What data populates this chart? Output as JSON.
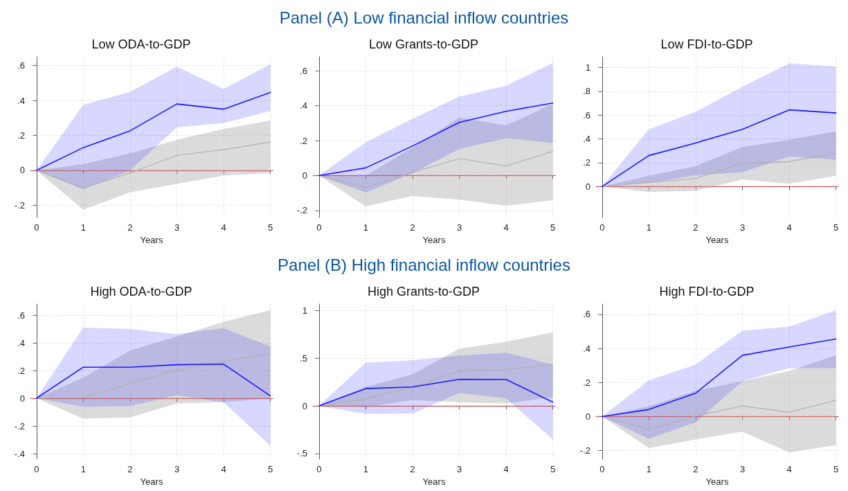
{
  "chart_data": [
    {
      "type": "line",
      "title": "Low ODA-to-GDP",
      "annotations": [
        "Panel (A) Low financial inflow countries"
      ],
      "xlabel": "Years",
      "x": [
        0,
        1,
        2,
        3,
        4,
        5
      ],
      "xlim": [
        -0.13,
        5.05
      ],
      "xticks": [
        0,
        1,
        2,
        3,
        4,
        5
      ],
      "ylim": [
        -0.27,
        0.65
      ],
      "yticks": [
        {
          "value": -0.2,
          "label": "-.2"
        },
        {
          "value": 0,
          "label": "0"
        },
        {
          "value": 0.2,
          "label": ".2"
        },
        {
          "value": 0.4,
          "label": ".4"
        },
        {
          "value": 0.6,
          "label": ".6"
        }
      ],
      "grid": true,
      "line_style": "solid",
      "marker": "none",
      "series": [
        {
          "color": "#b0b0b0",
          "values": [
            0,
            -0.1,
            -0.016,
            0.086,
            0.118,
            0.162
          ],
          "lower": [
            0,
            -0.225,
            -0.126,
            -0.078,
            -0.03,
            -0.016
          ],
          "upper": [
            0,
            0.035,
            0.097,
            0.175,
            0.237,
            0.285
          ]
        },
        {
          "color": "#1a1aff",
          "values": [
            0,
            0.13,
            0.226,
            0.38,
            0.35,
            0.446
          ],
          "lower": [
            0,
            -0.11,
            0,
            0.247,
            0.27,
            0.34
          ],
          "upper": [
            0,
            0.375,
            0.449,
            0.593,
            0.466,
            0.607
          ]
        }
      ],
      "ref_lines": [
        {
          "axis": "y",
          "value": 0,
          "label": null,
          "color": "#f06060",
          "line_style": "dashed"
        }
      ]
    },
    {
      "type": "line",
      "title": "Low Grants-to-GDP",
      "xlabel": "Years",
      "x": [
        0,
        1,
        2,
        3,
        4,
        5
      ],
      "xlim": [
        -0.13,
        5.05
      ],
      "xticks": [
        0,
        1,
        2,
        3,
        4,
        5
      ],
      "ylim": [
        -0.24,
        0.68
      ],
      "yticks": [
        {
          "value": -0.2,
          "label": "-.2"
        },
        {
          "value": 0,
          "label": "0"
        },
        {
          "value": 0.2,
          "label": ".2"
        },
        {
          "value": 0.4,
          "label": ".4"
        },
        {
          "value": 0.6,
          "label": ".6"
        }
      ],
      "grid": true,
      "line_style": "solid",
      "marker": "none",
      "series": [
        {
          "color": "#b0b0b0",
          "values": [
            0,
            -0.068,
            0.017,
            0.097,
            0.055,
            0.138
          ],
          "lower": [
            0,
            -0.177,
            -0.117,
            -0.138,
            -0.173,
            -0.141
          ],
          "upper": [
            0,
            0,
            0.16,
            0.332,
            0.287,
            0.41
          ]
        },
        {
          "color": "#1a1aff",
          "values": [
            0,
            0.044,
            0.169,
            0.304,
            0.368,
            0.415
          ],
          "lower": [
            0,
            -0.097,
            0.014,
            0.152,
            0.214,
            0.187
          ],
          "upper": [
            0,
            0.19,
            0.325,
            0.452,
            0.514,
            0.645
          ]
        }
      ],
      "ref_lines": [
        {
          "axis": "y",
          "value": 0,
          "label": null,
          "color": "#f06060",
          "line_style": "dashed"
        }
      ]
    },
    {
      "type": "line",
      "title": "Low FDI-to-GDP",
      "xlabel": "Years",
      "x": [
        0,
        1,
        2,
        3,
        4,
        5
      ],
      "xlim": [
        -0.13,
        5.05
      ],
      "xticks": [
        0,
        1,
        2,
        3,
        4,
        5
      ],
      "ylim": [
        -0.26,
        1.09
      ],
      "yticks": [
        {
          "value": 0,
          "label": "0"
        },
        {
          "value": 0.2,
          "label": ".2"
        },
        {
          "value": 0.4,
          "label": ".4"
        },
        {
          "value": 0.6,
          "label": ".6"
        },
        {
          "value": 0.8,
          "label": ".8"
        },
        {
          "value": 1,
          "label": "1"
        }
      ],
      "grid": true,
      "line_style": "solid",
      "marker": "none",
      "series": [
        {
          "color": "#b0b0b0",
          "values": [
            0,
            0.034,
            0.068,
            0.195,
            0.209,
            0.28
          ],
          "lower": [
            0,
            -0.046,
            -0.036,
            0.058,
            0.024,
            0.09
          ],
          "upper": [
            0,
            0.09,
            0.171,
            0.332,
            0.392,
            0.465
          ]
        },
        {
          "color": "#1a1aff",
          "values": [
            0,
            0.26,
            0.366,
            0.481,
            0.644,
            0.618
          ],
          "lower": [
            0,
            0.03,
            0.095,
            0.119,
            0.252,
            0.225
          ],
          "upper": [
            0,
            0.481,
            0.628,
            0.839,
            1.034,
            1.008
          ]
        }
      ],
      "ref_lines": [
        {
          "axis": "y",
          "value": 0,
          "label": null,
          "color": "#f06060",
          "line_style": "dashed"
        }
      ]
    },
    {
      "type": "line",
      "title": "High ODA-to-GDP",
      "annotations": [
        "Panel (B) High financial inflow countries"
      ],
      "xlabel": "Years",
      "x": [
        0,
        1,
        2,
        3,
        4,
        5
      ],
      "xlim": [
        -0.13,
        5.05
      ],
      "xticks": [
        0,
        1,
        2,
        3,
        4,
        5
      ],
      "ylim": [
        -0.44,
        0.68
      ],
      "yticks": [
        {
          "value": -0.4,
          "label": "-.4"
        },
        {
          "value": -0.2,
          "label": "-.2"
        },
        {
          "value": 0,
          "label": "0"
        },
        {
          "value": 0.2,
          "label": ".2"
        },
        {
          "value": 0.4,
          "label": ".4"
        },
        {
          "value": 0.6,
          "label": ".6"
        }
      ],
      "grid": true,
      "line_style": "solid",
      "marker": "none",
      "series": [
        {
          "color": "#b0b0b0",
          "values": [
            0,
            0.005,
            0.107,
            0.203,
            0.264,
            0.324
          ],
          "lower": [
            0,
            -0.147,
            -0.139,
            -0.037,
            -0.029,
            0
          ],
          "upper": [
            0,
            0.149,
            0.344,
            0.446,
            0.551,
            0.636
          ]
        },
        {
          "color": "#1a1aff",
          "values": [
            0,
            0.224,
            0.224,
            0.242,
            0.246,
            0.017
          ],
          "lower": [
            0,
            -0.063,
            -0.056,
            0.022,
            -0.03,
            -0.342
          ],
          "upper": [
            0,
            0.51,
            0.5,
            0.463,
            0.505,
            0.373
          ]
        }
      ],
      "ref_lines": [
        {
          "axis": "y",
          "value": 0,
          "label": null,
          "color": "#f06060",
          "line_style": "dashed"
        }
      ]
    },
    {
      "type": "line",
      "title": "High Grants-to-GDP",
      "xlabel": "Years",
      "x": [
        0,
        1,
        2,
        3,
        4,
        5
      ],
      "xlim": [
        -0.13,
        5.05
      ],
      "xticks": [
        0,
        1,
        2,
        3,
        4,
        5
      ],
      "ylim": [
        -0.56,
        1.07
      ],
      "yticks": [
        {
          "value": -0.5,
          "label": "-.5"
        },
        {
          "value": 0,
          "label": "0"
        },
        {
          "value": 0.5,
          "label": ".5"
        },
        {
          "value": 1,
          "label": "1"
        }
      ],
      "grid": true,
      "line_style": "solid",
      "marker": "none",
      "series": [
        {
          "color": "#b0b0b0",
          "values": [
            0,
            0.074,
            0.196,
            0.368,
            0.38,
            0.434
          ],
          "lower": [
            0,
            -0.012,
            0.06,
            0.037,
            0.025,
            0.09
          ],
          "upper": [
            0,
            0.2,
            0.331,
            0.6,
            0.674,
            0.772
          ]
        },
        {
          "color": "#1a1aff",
          "values": [
            0,
            0.181,
            0.199,
            0.279,
            0.277,
            0.039
          ],
          "lower": [
            0,
            -0.086,
            -0.081,
            0.135,
            0.081,
            -0.355
          ],
          "upper": [
            0,
            0.453,
            0.478,
            0.527,
            0.559,
            0.434
          ]
        }
      ],
      "ref_lines": [
        {
          "axis": "y",
          "value": 0,
          "label": null,
          "color": "#f06060",
          "line_style": "dashed"
        }
      ]
    },
    {
      "type": "line",
      "title": "High FDI-to-GDP",
      "xlabel": "Years",
      "x": [
        0,
        1,
        2,
        3,
        4,
        5
      ],
      "xlim": [
        -0.13,
        5.05
      ],
      "xticks": [
        0,
        1,
        2,
        3,
        4,
        5
      ],
      "ylim": [
        -0.25,
        0.66
      ],
      "yticks": [
        {
          "value": -0.2,
          "label": "-.2"
        },
        {
          "value": 0,
          "label": "0"
        },
        {
          "value": 0.2,
          "label": ".2"
        },
        {
          "value": 0.4,
          "label": ".4"
        },
        {
          "value": 0.6,
          "label": ".6"
        }
      ],
      "grid": true,
      "line_style": "solid",
      "marker": "none",
      "series": [
        {
          "color": "#b0b0b0",
          "values": [
            0,
            -0.075,
            0.003,
            0.062,
            0.025,
            0.096
          ],
          "lower": [
            0,
            -0.185,
            -0.134,
            -0.089,
            -0.21,
            -0.168
          ],
          "upper": [
            0,
            0.06,
            0.151,
            0.208,
            0.267,
            0.359
          ]
        },
        {
          "color": "#1a1aff",
          "values": [
            0,
            0.041,
            0.137,
            0.359,
            0.408,
            0.455
          ],
          "lower": [
            0,
            -0.13,
            -0.034,
            0.208,
            0.284,
            0.284
          ],
          "upper": [
            0,
            0.212,
            0.305,
            0.504,
            0.527,
            0.623
          ]
        }
      ],
      "ref_lines": [
        {
          "axis": "y",
          "value": 0,
          "label": null,
          "color": "#f06060",
          "line_style": "dashed"
        }
      ]
    }
  ]
}
